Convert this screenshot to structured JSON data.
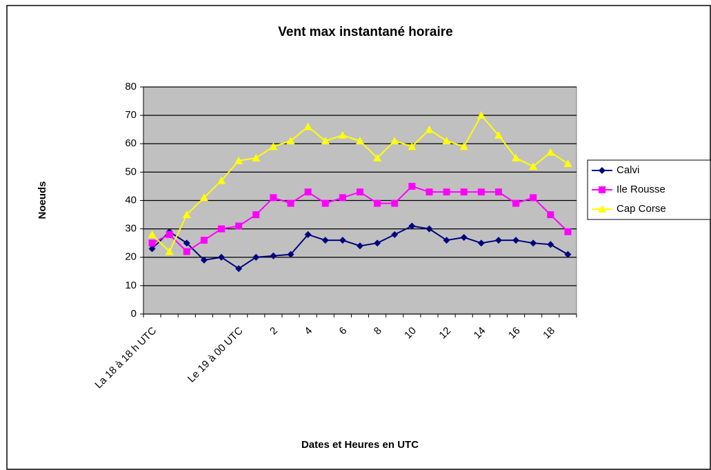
{
  "chart_data": {
    "type": "line",
    "title": "Vent max instantané horaire",
    "y_label": "Noeuds",
    "x_label": "Dates et Heures en UTC",
    "categories": [
      "La 18 à 18 h UTC",
      null,
      null,
      null,
      null,
      "Le 19 à 00 UTC",
      null,
      "2",
      null,
      "4",
      null,
      "6",
      null,
      "8",
      null,
      "10",
      null,
      "12",
      null,
      "14",
      null,
      "16",
      null,
      "18",
      null
    ],
    "series": [
      {
        "name": "Calvi",
        "color": "#000080",
        "marker": "diamond",
        "values": [
          23,
          29,
          25,
          19,
          20,
          16,
          20,
          20.5,
          21,
          28,
          26,
          26,
          24,
          25,
          28,
          31,
          30,
          26,
          27,
          25,
          26,
          26,
          25,
          24.5,
          21
        ]
      },
      {
        "name": "Ile Rousse",
        "color": "#ff00ff",
        "marker": "square",
        "values": [
          25,
          28,
          22,
          26,
          30,
          31,
          35,
          41,
          39,
          43,
          39,
          41,
          43,
          39,
          39,
          45,
          43,
          43,
          43,
          43,
          43,
          39,
          41,
          35,
          29
        ]
      },
      {
        "name": "Cap Corse",
        "color": "#ffff00",
        "marker": "triangle",
        "values": [
          28,
          22,
          35,
          41,
          47,
          54,
          55,
          59,
          61,
          66,
          61,
          63,
          61,
          55,
          61,
          59,
          65,
          61,
          59,
          70,
          63,
          55,
          52,
          57,
          53
        ]
      }
    ],
    "ylim": [
      0,
      80
    ],
    "yticks": [
      0,
      10,
      20,
      30,
      40,
      50,
      60,
      70,
      80
    ],
    "grid": true,
    "legend": "right",
    "plot_background": "#c0c0c0"
  }
}
